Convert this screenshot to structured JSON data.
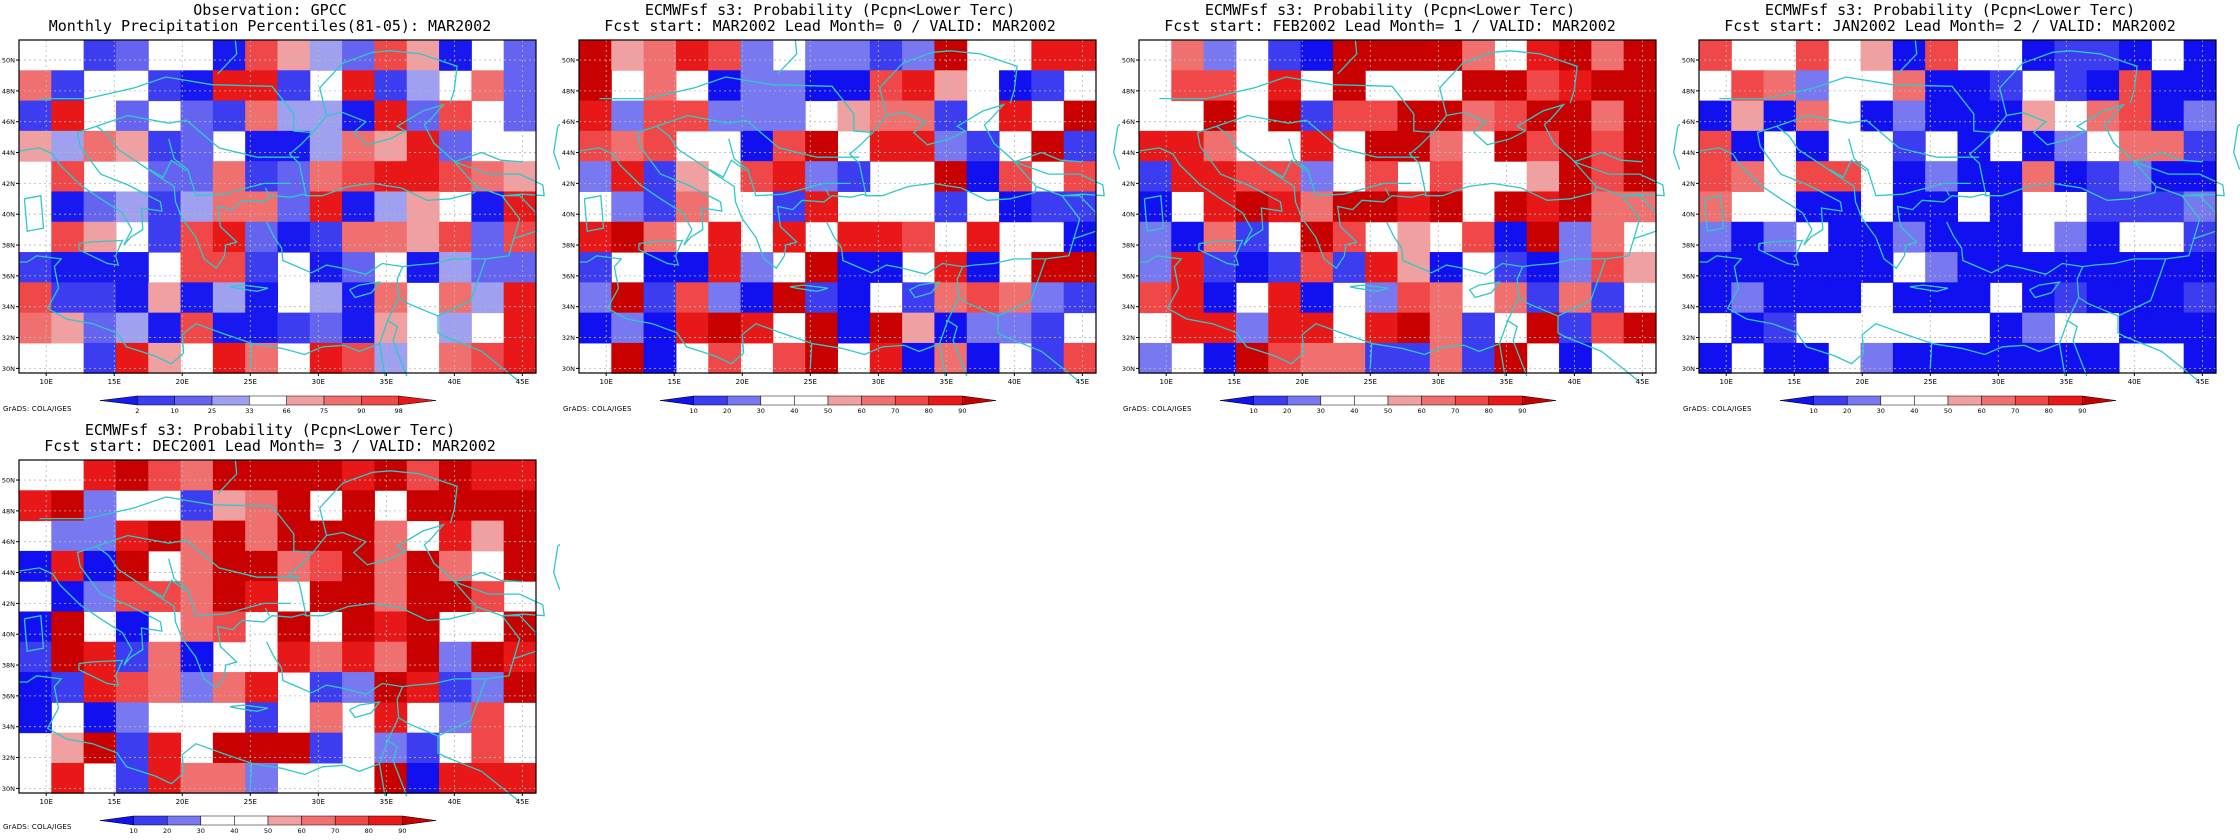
{
  "credit": "GrADS: COLA/IGES",
  "lon_labels": [
    "10E",
    "15E",
    "20E",
    "25E",
    "30E",
    "35E",
    "40E",
    "45E"
  ],
  "lat_labels": [
    "30N",
    "32N",
    "34N",
    "36N",
    "38N",
    "40N",
    "42N",
    "44N",
    "46N",
    "48N",
    "50N"
  ],
  "obs_legend": {
    "labels": [
      "2",
      "10",
      "25",
      "33",
      "66",
      "75",
      "90",
      "98"
    ],
    "colors": [
      "#1818f0",
      "#3c3cf0",
      "#6464f0",
      "#a0a0f0",
      "#ffffff",
      "#f0a0a0",
      "#f07070",
      "#f04848",
      "#e81818"
    ]
  },
  "prob_legend": {
    "labels": [
      "10",
      "20",
      "30",
      "40",
      "50",
      "60",
      "70",
      "80",
      "90"
    ],
    "colors": [
      "#1010f0",
      "#3c3cf0",
      "#7878f0",
      "#ffffff",
      "#ffffff",
      "#f0a0a0",
      "#f07070",
      "#f04848",
      "#e81818",
      "#c80000"
    ]
  },
  "map_colors": {
    "land_outline": "#30c8c8",
    "grid": "#b8b8b8"
  },
  "panels": [
    {
      "title1": "Observation: GPCC",
      "title2": "Monthly Precipitation Percentiles(81-05): MAR2002",
      "legend": "obs"
    },
    {
      "title1": "ECMWFsf s3: Probability (Pcpn<Lower Terc)",
      "title2": "Fcst start: MAR2002  Lead Month= 0 / VALID: MAR2002",
      "legend": "prob"
    },
    {
      "title1": "ECMWFsf s3: Probability (Pcpn<Lower Terc)",
      "title2": "Fcst start: FEB2002  Lead Month= 1 / VALID: MAR2002",
      "legend": "prob"
    },
    {
      "title1": "ECMWFsf s3: Probability (Pcpn<Lower Terc)",
      "title2": "Fcst start: JAN2002  Lead Month= 2 / VALID: MAR2002",
      "legend": "prob"
    },
    {
      "title1": "ECMWFsf s3: Probability (Pcpn<Lower Terc)",
      "title2": "Fcst start: DEC2001  Lead Month= 3 / VALID: MAR2002",
      "legend": "prob"
    }
  ]
}
